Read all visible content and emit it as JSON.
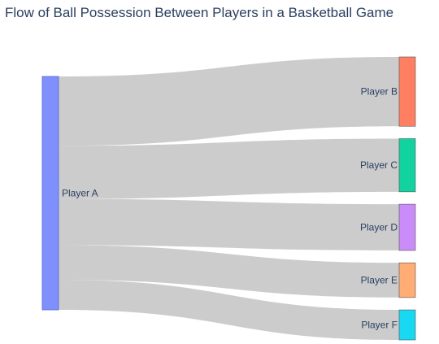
{
  "title": "Flow of Ball Possession Between Players in a Basketball Game",
  "chart_data": {
    "type": "sankey",
    "title": "Flow of Ball Possession Between Players in a Basketball Game",
    "nodes": [
      {
        "id": "A",
        "label": "Player A",
        "color": "#7f8ffb"
      },
      {
        "id": "B",
        "label": "Player B",
        "color": "#ff7f62"
      },
      {
        "id": "C",
        "label": "Player C",
        "color": "#12d2a0"
      },
      {
        "id": "D",
        "label": "Player D",
        "color": "#c98cf8"
      },
      {
        "id": "E",
        "label": "Player E",
        "color": "#ffad75"
      },
      {
        "id": "F",
        "label": "Player F",
        "color": "#18d8f2"
      }
    ],
    "links": [
      {
        "source": "A",
        "target": "B",
        "value": 30
      },
      {
        "source": "A",
        "target": "C",
        "value": 23
      },
      {
        "source": "A",
        "target": "D",
        "value": 20
      },
      {
        "source": "A",
        "target": "E",
        "value": 15
      },
      {
        "source": "A",
        "target": "F",
        "value": 13
      }
    ],
    "link_color": "#c9c9c9"
  }
}
